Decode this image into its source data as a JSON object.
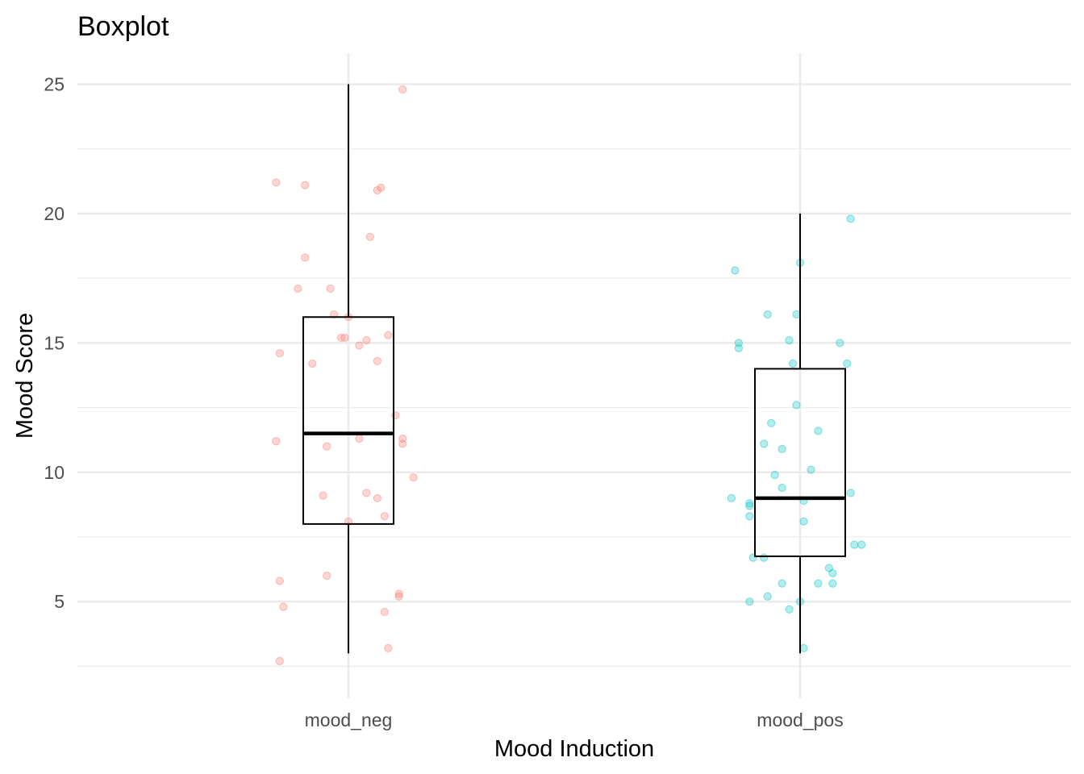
{
  "chart_data": {
    "type": "boxplot",
    "title": "Boxplot",
    "xlabel": "Mood Induction",
    "ylabel": "Mood Score",
    "ylim": [
      2.2,
      26.2
    ],
    "yticks": [
      5,
      10,
      15,
      20,
      25
    ],
    "grid": true,
    "legend": "none",
    "categories": [
      "mood_neg",
      "mood_pos"
    ],
    "colors": {
      "mood_neg": "#F8766D",
      "mood_pos": "#00BFC4",
      "box": "#000000",
      "grid": "#ebebeb"
    },
    "boxes": [
      {
        "category": "mood_neg",
        "whisker_low": 3,
        "q1": 8,
        "median": 11.5,
        "q3": 16,
        "whisker_high": 25
      },
      {
        "category": "mood_pos",
        "whisker_low": 3,
        "q1": 6.75,
        "median": 9,
        "q3": 14,
        "whisker_high": 20
      }
    ],
    "points": [
      {
        "category": "mood_neg",
        "jitter": [
          -0.2,
          -0.12,
          0.15,
          0.09,
          0.08,
          -0.12,
          -0.14,
          -0.05,
          0.06,
          0.0,
          -0.04,
          0.11,
          -0.19,
          -0.1,
          -0.02,
          -0.01,
          0.05,
          0.03,
          0.08,
          0.13,
          -0.2,
          -0.06,
          0.03,
          0.15,
          0.15,
          0.18,
          0.05,
          0.08,
          -0.07,
          0.0,
          0.1,
          -0.19,
          -0.06,
          -0.18,
          0.14,
          0.14,
          0.1,
          0.11,
          -0.19
        ],
        "values": [
          21.2,
          21.1,
          24.8,
          21.0,
          20.9,
          18.3,
          17.1,
          17.1,
          19.1,
          16.0,
          16.1,
          15.3,
          14.6,
          14.2,
          15.2,
          15.2,
          15.1,
          14.9,
          14.3,
          12.2,
          11.2,
          11.0,
          11.3,
          11.3,
          11.1,
          9.8,
          9.2,
          9.0,
          9.1,
          8.1,
          8.3,
          5.8,
          6.0,
          4.8,
          5.3,
          5.2,
          4.6,
          3.2,
          2.7
        ]
      },
      {
        "category": "mood_pos",
        "jitter": [
          -0.18,
          -0.17,
          -0.17,
          -0.09,
          -0.01,
          0.11,
          0.13,
          -0.08,
          0.0,
          -0.03,
          -0.02,
          0.14,
          -0.1,
          -0.05,
          0.05,
          -0.07,
          -0.14,
          -0.14,
          0.03,
          0.14,
          0.01,
          -0.19,
          -0.05,
          -0.14,
          0.01,
          0.15,
          0.17,
          -0.13,
          -0.1,
          0.08,
          0.09,
          -0.05,
          0.05,
          0.09,
          -0.14,
          -0.03,
          0.0,
          -0.09,
          0.01,
          -0.01
        ],
        "values": [
          17.8,
          15.0,
          14.8,
          16.1,
          16.1,
          15.0,
          14.2,
          11.9,
          18.1,
          15.1,
          14.2,
          19.8,
          11.1,
          10.9,
          11.6,
          9.9,
          8.7,
          8.3,
          10.1,
          9.2,
          8.9,
          9.0,
          9.4,
          8.8,
          8.1,
          7.2,
          7.2,
          6.7,
          6.7,
          6.3,
          6.1,
          5.7,
          5.7,
          5.7,
          5.0,
          4.7,
          5.0,
          5.2,
          3.2,
          12.6
        ]
      }
    ]
  }
}
